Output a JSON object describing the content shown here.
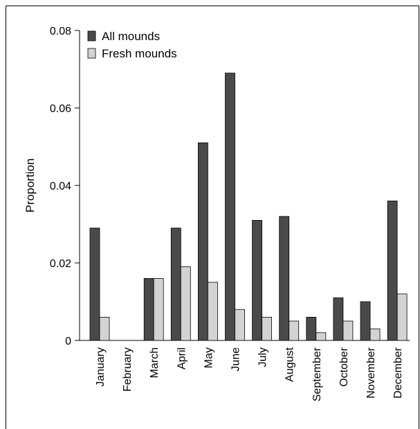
{
  "chart_data": {
    "type": "bar",
    "ylabel": "Proportion",
    "xlabel": "",
    "ylim": [
      0,
      0.08
    ],
    "yticks": [
      0,
      0.02,
      0.04,
      0.06,
      0.08
    ],
    "ytick_labels": [
      "0",
      "0.02",
      "0.04",
      "0.06",
      "0.08"
    ],
    "categories": [
      "January",
      "February",
      "March",
      "April",
      "May",
      "June",
      "July",
      "August",
      "September",
      "October",
      "November",
      "December"
    ],
    "series": [
      {
        "name": "All mounds",
        "color": "#4a4a4a",
        "values": [
          0.029,
          0.0,
          0.016,
          0.029,
          0.051,
          0.069,
          0.031,
          0.032,
          0.006,
          0.011,
          0.01,
          0.036
        ]
      },
      {
        "name": "Fresh mounds",
        "color": "#d3d3d3",
        "values": [
          0.006,
          0.0,
          0.016,
          0.019,
          0.015,
          0.008,
          0.006,
          0.005,
          0.002,
          0.005,
          0.003,
          0.012
        ]
      }
    ],
    "legend_position": "top-left"
  }
}
